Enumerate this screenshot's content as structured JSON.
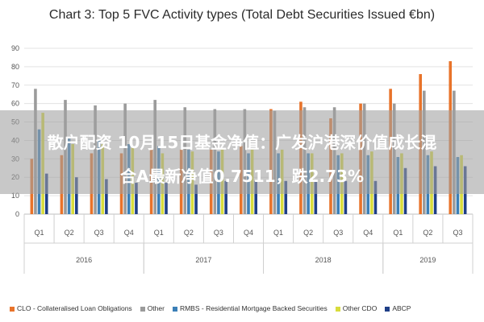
{
  "chart_data": {
    "type": "bar",
    "title": "Chart 3: Top 5 FVC Activity types (Total Debt Securities Issued €bn)",
    "ylim": [
      0,
      90
    ],
    "yticks": [
      0,
      10,
      20,
      30,
      40,
      50,
      60,
      70,
      80,
      90
    ],
    "grid": true,
    "legend_position": "bottom",
    "categories": [
      "Q1",
      "Q2",
      "Q3",
      "Q4",
      "Q1",
      "Q2",
      "Q3",
      "Q4",
      "Q1",
      "Q2",
      "Q3",
      "Q4",
      "Q1",
      "Q2",
      "Q3"
    ],
    "years": [
      {
        "label": "2016",
        "start": 0,
        "end": 3
      },
      {
        "label": "2017",
        "start": 4,
        "end": 7
      },
      {
        "label": "2018",
        "start": 8,
        "end": 11
      },
      {
        "label": "2019",
        "start": 12,
        "end": 14
      }
    ],
    "series": [
      {
        "name": "CLO - Collateralised Loan Obligations",
        "color": "#e8732a",
        "values": [
          30,
          32,
          33,
          33,
          35,
          35,
          35,
          37,
          57,
          61,
          52,
          60,
          68,
          76,
          83
        ]
      },
      {
        "name": "Other",
        "color": "#9b9b9b",
        "values": [
          68,
          62,
          59,
          60,
          62,
          58,
          57,
          57,
          56,
          58,
          58,
          60,
          60,
          67,
          67
        ]
      },
      {
        "name": "RMBS - Residential Mortgage Backed Securities",
        "color": "#3b7fb7",
        "values": [
          46,
          41,
          40,
          38,
          37,
          35,
          34,
          33,
          33,
          33,
          32,
          32,
          31,
          32,
          31
        ]
      },
      {
        "name": "Other CDO",
        "color": "#d8dc3c",
        "values": [
          55,
          38,
          38,
          36,
          33,
          34,
          35,
          35,
          35,
          33,
          33,
          34,
          33,
          34,
          32
        ]
      },
      {
        "name": "ABCP",
        "color": "#1f3f87",
        "values": [
          22,
          20,
          19,
          17,
          17,
          16,
          18,
          18,
          18,
          18,
          18,
          18,
          25,
          26,
          26
        ]
      }
    ]
  },
  "overlay": {
    "line1": "散户配资 10月15日基金净值：广发沪港深价值成长混",
    "line2": "合A最新净值0.7511，跌2.73%"
  }
}
